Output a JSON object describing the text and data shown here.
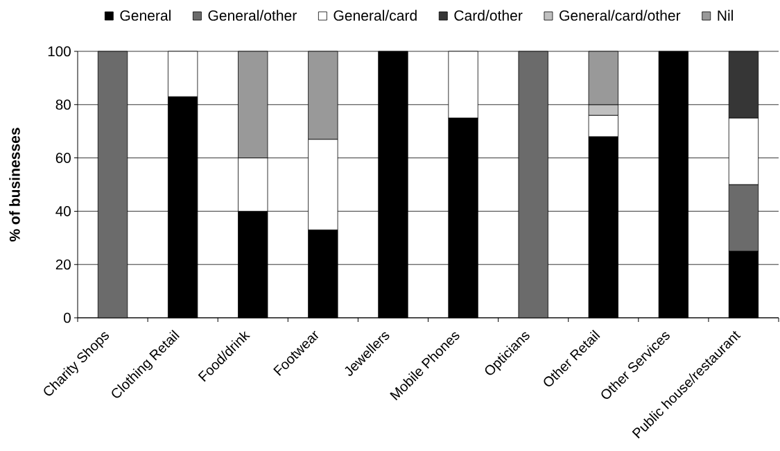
{
  "chart_data": {
    "type": "bar",
    "stacked": true,
    "ylabel": "% of businesses",
    "categories": [
      "Charity Shops",
      "Clothing Retail",
      "Food/drink",
      "Footwear",
      "Jewellers",
      "Mobile Phones",
      "Opticians",
      "Other Retail",
      "Other Services",
      "Public house/restaurant"
    ],
    "ylim": [
      0,
      100
    ],
    "yticks": [
      0,
      20,
      40,
      60,
      80,
      100
    ],
    "grid": "y",
    "legend": "top",
    "series": [
      {
        "name": "General",
        "color": "#000000",
        "values": [
          null,
          83,
          40,
          33,
          100,
          75,
          null,
          68,
          100,
          25
        ]
      },
      {
        "name": "General/other",
        "color": "#6b6b6b",
        "values": [
          100,
          null,
          null,
          null,
          null,
          null,
          100,
          null,
          null,
          25
        ]
      },
      {
        "name": "General/card",
        "color": "#ffffff",
        "values": [
          null,
          17,
          20,
          34,
          null,
          25,
          null,
          8,
          null,
          25
        ]
      },
      {
        "name": "Card/other",
        "color": "#363636",
        "values": [
          null,
          null,
          null,
          null,
          null,
          null,
          null,
          null,
          null,
          25
        ]
      },
      {
        "name": "General/card/other",
        "color": "#c0c0c0",
        "values": [
          null,
          null,
          null,
          null,
          null,
          null,
          null,
          4,
          null,
          null
        ]
      },
      {
        "name": "Nil",
        "color": "#999999",
        "values": [
          null,
          null,
          40,
          33,
          null,
          null,
          null,
          20,
          null,
          null
        ]
      }
    ]
  }
}
